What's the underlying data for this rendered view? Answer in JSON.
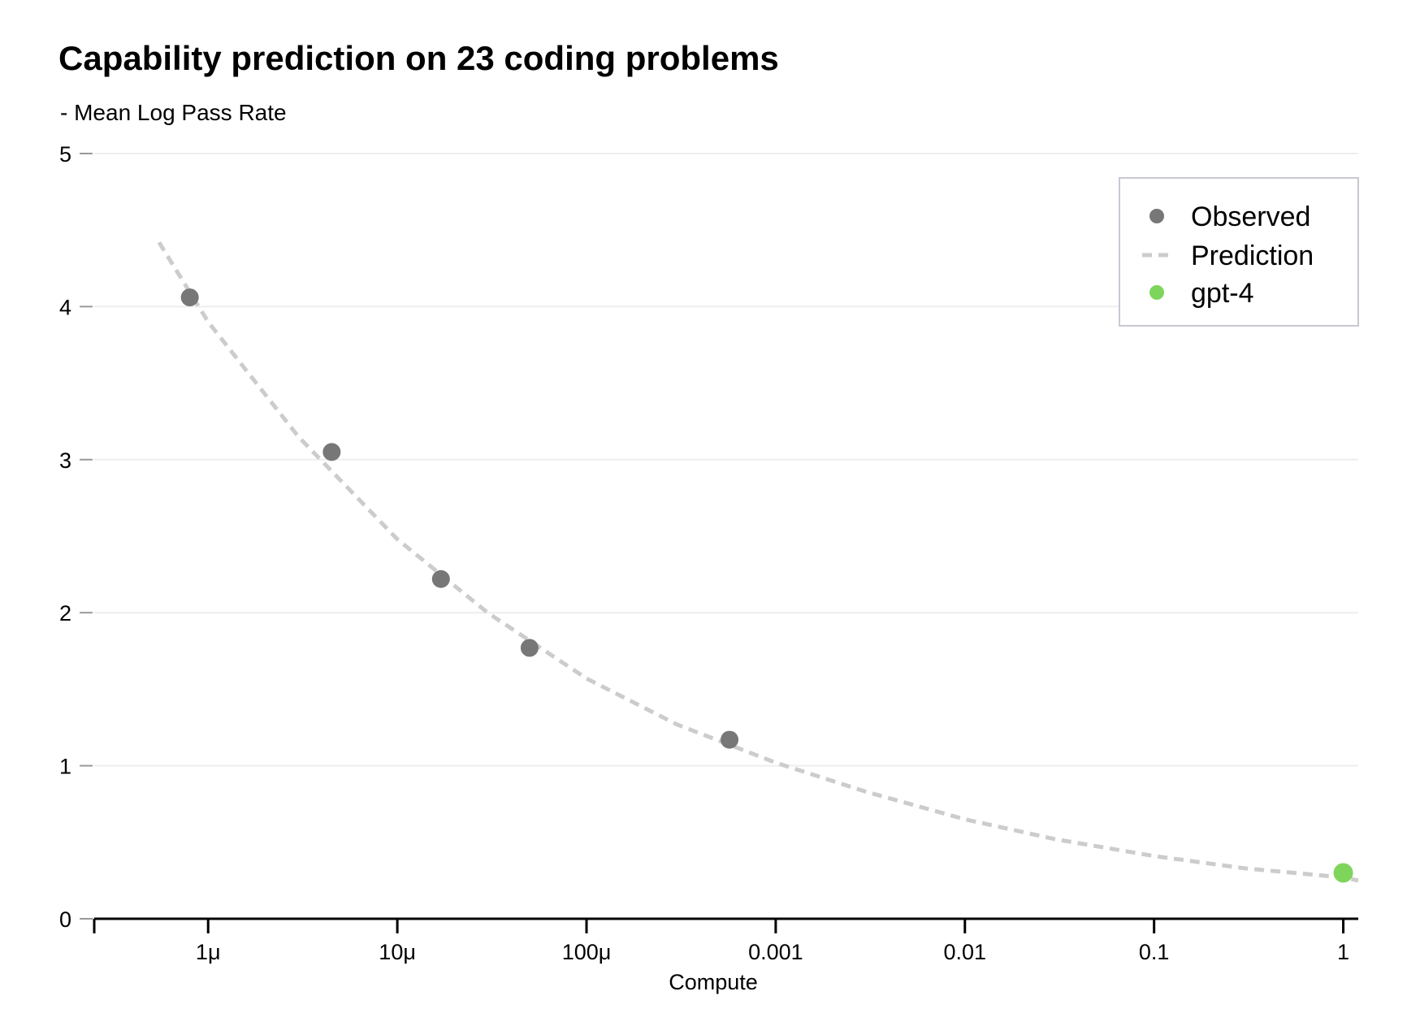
{
  "chart_data": {
    "type": "scatter",
    "title": "Capability prediction on 23 coding problems",
    "subtitle": "- Mean Log Pass Rate",
    "xlabel": "Compute",
    "ylabel": "",
    "x_scale": "log",
    "xlim": [
      2.5e-07,
      1.2
    ],
    "ylim": [
      0,
      5
    ],
    "y_ticks": [
      0,
      1,
      2,
      3,
      4,
      5
    ],
    "x_ticks": [
      {
        "value": 1e-06,
        "label": "1μ"
      },
      {
        "value": 1e-05,
        "label": "10μ"
      },
      {
        "value": 0.0001,
        "label": "100μ"
      },
      {
        "value": 0.001,
        "label": "0.001"
      },
      {
        "value": 0.01,
        "label": "0.01"
      },
      {
        "value": 0.1,
        "label": "0.1"
      },
      {
        "value": 1,
        "label": "1"
      }
    ],
    "grid": "horizontal",
    "legend_position": "top-right",
    "colors": {
      "observed": "#777777",
      "prediction": "#cccccc",
      "gpt4": "#7ed55b",
      "grid": "#eeeeee",
      "legend_border": "#c8c8d4",
      "axis": "#000000"
    },
    "series": [
      {
        "name": "Observed",
        "kind": "points",
        "points": [
          {
            "x": 8e-07,
            "y": 4.06
          },
          {
            "x": 4.5e-06,
            "y": 3.05
          },
          {
            "x": 1.7e-05,
            "y": 2.22
          },
          {
            "x": 5e-05,
            "y": 1.77
          },
          {
            "x": 0.00057,
            "y": 1.17
          }
        ]
      },
      {
        "name": "Prediction",
        "kind": "dashed-line",
        "points": [
          {
            "x": 5.5e-07,
            "y": 4.42
          },
          {
            "x": 1e-06,
            "y": 3.9
          },
          {
            "x": 3e-06,
            "y": 3.15
          },
          {
            "x": 1e-05,
            "y": 2.48
          },
          {
            "x": 3e-05,
            "y": 2.0
          },
          {
            "x": 0.0001,
            "y": 1.57
          },
          {
            "x": 0.0003,
            "y": 1.27
          },
          {
            "x": 0.001,
            "y": 1.02
          },
          {
            "x": 0.003,
            "y": 0.83
          },
          {
            "x": 0.01,
            "y": 0.65
          },
          {
            "x": 0.03,
            "y": 0.52
          },
          {
            "x": 0.1,
            "y": 0.41
          },
          {
            "x": 0.3,
            "y": 0.33
          },
          {
            "x": 1,
            "y": 0.27
          },
          {
            "x": 1.2,
            "y": 0.25
          }
        ]
      },
      {
        "name": "gpt-4",
        "kind": "points",
        "points": [
          {
            "x": 1,
            "y": 0.3
          }
        ]
      }
    ]
  }
}
